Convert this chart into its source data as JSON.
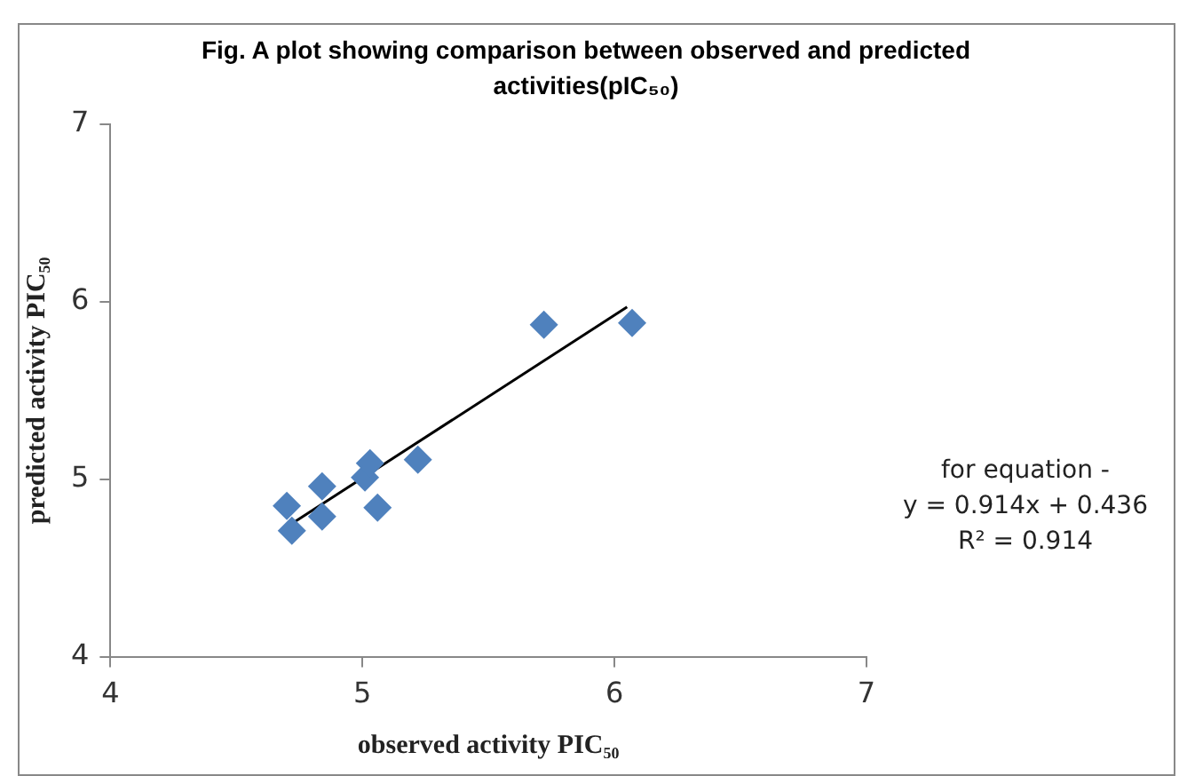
{
  "chart_data": {
    "type": "scatter",
    "title": "Fig.  A plot showing comparison between observed and predicted activities(pIC₅₀)",
    "xlabel": "observed activity PIC₅₀",
    "ylabel": "predicted activity PIC₅₀",
    "xlim": [
      4,
      7
    ],
    "xticks": [
      4,
      5,
      6,
      7
    ],
    "ylim": [
      4,
      7
    ],
    "yticks": [
      4,
      5,
      6,
      7
    ],
    "grid": false,
    "legend": false,
    "marker": "diamond",
    "series": [
      {
        "color": "#4f81bd",
        "x": [
          4.7,
          4.72,
          4.84,
          4.84,
          5.01,
          5.03,
          5.06,
          5.22,
          5.72,
          6.07
        ],
        "values": [
          4.85,
          4.71,
          4.96,
          4.79,
          5.01,
          5.09,
          4.84,
          5.11,
          5.87,
          5.88
        ]
      },
      {
        "type": "line",
        "color": "#000000",
        "marker": "none",
        "x": [
          4.72,
          6.05
        ],
        "values": [
          4.75,
          5.97
        ]
      }
    ],
    "annotations": [
      "for equation -",
      "y = 0.914x + 0.436",
      "R² = 0.914"
    ]
  }
}
